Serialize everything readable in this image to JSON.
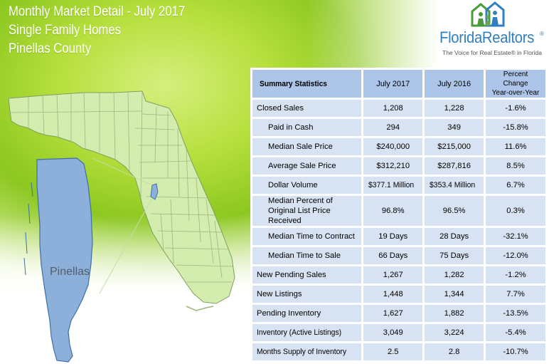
{
  "header": {
    "title": "Monthly Market Detail - July 2017",
    "property_type": "Single Family Homes",
    "county": "Pinellas County"
  },
  "logo": {
    "name": "FloridaRealtors",
    "registered_mark": "®",
    "tagline": "The Voice for Real Estate® in Florida"
  },
  "map": {
    "highlight_label": "Pinellas",
    "highlight_color": "#8db0db",
    "state_fill": "#d4edaf"
  },
  "table": {
    "headers": {
      "label": "Summary Statistics",
      "current": "July 2017",
      "previous": "July 2016",
      "change_line1": "Percent Change",
      "change_line2": "Year-over-Year"
    },
    "rows": [
      {
        "label": "Closed Sales",
        "current": "1,208",
        "previous": "1,228",
        "change": "-1.6%"
      },
      {
        "label": "Paid in Cash",
        "current": "294",
        "previous": "349",
        "change": "-15.8%"
      },
      {
        "label": "Median Sale Price",
        "current": "$240,000",
        "previous": "$215,000",
        "change": "11.6%"
      },
      {
        "label": "Average Sale Price",
        "current": "$312,210",
        "previous": "$287,816",
        "change": "8.5%"
      },
      {
        "label": "Dollar Volume",
        "current": "$377.1 Million",
        "previous": "$353.4 Million",
        "change": "6.7%"
      },
      {
        "label": "Median Percent of Original List Price Received",
        "current": "96.8%",
        "previous": "96.5%",
        "change": "0.3%"
      },
      {
        "label": "Median Time to Contract",
        "current": "19 Days",
        "previous": "28 Days",
        "change": "-32.1%"
      },
      {
        "label": "Median Time to Sale",
        "current": "66 Days",
        "previous": "75 Days",
        "change": "-12.0%"
      },
      {
        "label": "New Pending Sales",
        "current": "1,267",
        "previous": "1,282",
        "change": "-1.2%"
      },
      {
        "label": "New Listings",
        "current": "1,448",
        "previous": "1,344",
        "change": "7.7%"
      },
      {
        "label": "Pending Inventory",
        "current": "1,627",
        "previous": "1,882",
        "change": "-13.5%"
      },
      {
        "label": "Inventory (Active Listings)",
        "current": "3,049",
        "previous": "3,224",
        "change": "-5.4%"
      },
      {
        "label": "Months Supply of Inventory",
        "current": "2.5",
        "previous": "2.8",
        "change": "-10.7%"
      }
    ]
  }
}
